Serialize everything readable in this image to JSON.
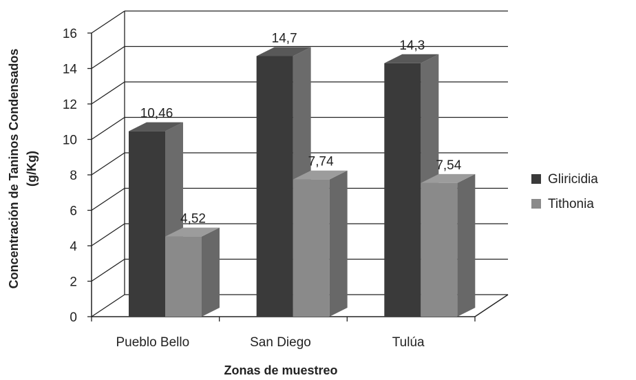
{
  "chart_data": {
    "type": "bar",
    "title": "",
    "xlabel": "Zonas de muestreo",
    "ylabel": [
      "Concentración de Taninos Condensados",
      "(g/Kg)"
    ],
    "categories": [
      "Pueblo Bello",
      "San Diego",
      "Tulúa"
    ],
    "series": [
      {
        "name": "Gliricidia",
        "values": [
          10.46,
          14.7,
          14.3
        ],
        "labels": [
          "10,46",
          "14,7",
          "14,3"
        ],
        "color": "#3a3a3a"
      },
      {
        "name": "Tithonia",
        "values": [
          4.52,
          7.74,
          7.54
        ],
        "labels": [
          "4,52",
          "7,74",
          "7,54"
        ],
        "color": "#8a8a8a"
      }
    ],
    "ylim": [
      0,
      16
    ],
    "yticks": [
      0,
      2,
      4,
      6,
      8,
      10,
      12,
      14,
      16
    ],
    "grid": true,
    "three_d": true,
    "legend_position": "right"
  }
}
